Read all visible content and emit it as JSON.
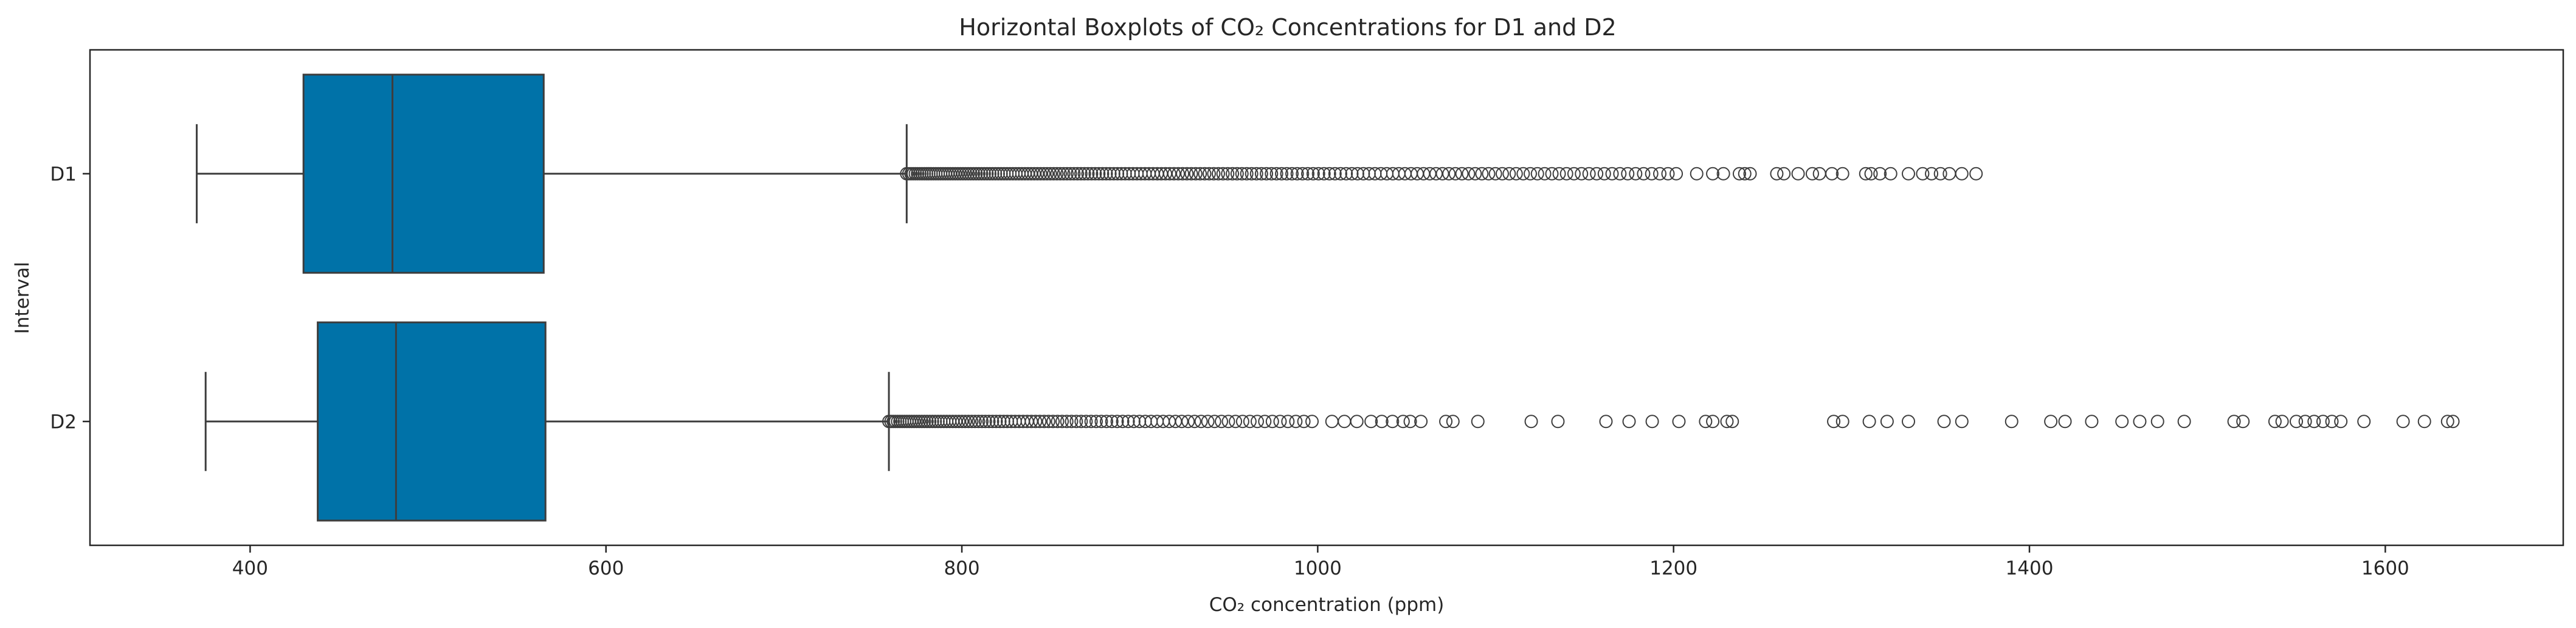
{
  "chart_data": {
    "type": "boxplot",
    "orientation": "horizontal",
    "title": "Horizontal Boxplots of CO₂ Concentrations for D1 and D2",
    "xlabel": "CO₂ concentration (ppm)",
    "ylabel": "Interval",
    "xlim": [
      310,
      1700
    ],
    "xticks": [
      400,
      600,
      800,
      1000,
      1200,
      1400,
      1600
    ],
    "categories": [
      "D1",
      "D2"
    ],
    "box_color": "#0072A8",
    "series": [
      {
        "name": "D1",
        "whisker_low": 370,
        "q1": 430,
        "median": 480,
        "q3": 565,
        "whisker_high": 769,
        "outlier_dense_range": [
          769,
          1205
        ],
        "outliers": [
          1213,
          1222,
          1228,
          1237,
          1240,
          1243,
          1258,
          1262,
          1270,
          1278,
          1282,
          1289,
          1295,
          1308,
          1311,
          1316,
          1322,
          1332,
          1340,
          1345,
          1350,
          1355,
          1362,
          1370
        ]
      },
      {
        "name": "D2",
        "whisker_low": 375,
        "q1": 438,
        "median": 482,
        "q3": 566,
        "whisker_high": 759,
        "outlier_dense_range": [
          759,
          1000
        ],
        "outliers": [
          1008,
          1015,
          1022,
          1030,
          1036,
          1042,
          1048,
          1052,
          1058,
          1072,
          1076,
          1090,
          1120,
          1135,
          1162,
          1175,
          1188,
          1203,
          1218,
          1222,
          1230,
          1233,
          1290,
          1295,
          1310,
          1320,
          1332,
          1352,
          1362,
          1390,
          1412,
          1420,
          1435,
          1452,
          1462,
          1472,
          1487,
          1515,
          1520,
          1538,
          1542,
          1550,
          1555,
          1560,
          1565,
          1570,
          1575,
          1588,
          1610,
          1622,
          1635,
          1638
        ]
      }
    ]
  }
}
